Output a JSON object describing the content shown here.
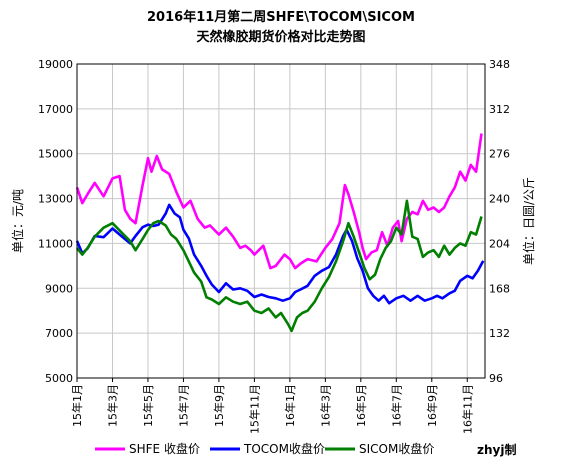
{
  "chart_data": {
    "type": "line",
    "title": "2016年11月第二周SHFE\\TOCOM\\SICOM",
    "subtitle": "天然橡胶期货价格对比走势图",
    "ylabel_left": "单位：元/吨",
    "ylabel_right": "单位：日圆/公斤",
    "left_axis": {
      "min": 5000,
      "max": 19000,
      "ticks": [
        "19000",
        "17000",
        "15000",
        "13000",
        "11000",
        "9000",
        "7000",
        "5000"
      ]
    },
    "right_axis": {
      "min": 96,
      "max": 348,
      "ticks": [
        "348",
        "312",
        "276",
        "240",
        "204",
        "168",
        "132",
        "96"
      ]
    },
    "x_ticks": [
      "15年1月",
      "15年3月",
      "15年5月",
      "15年7月",
      "15年9月",
      "15年11月",
      "16年1月",
      "16年3月",
      "16年5月",
      "16年7月",
      "16年9月",
      "16年11月"
    ],
    "x_tick_positions": [
      0,
      2,
      4,
      6,
      8,
      10,
      12,
      14,
      16,
      18,
      20,
      22
    ],
    "grid": true,
    "legend_position": "bottom",
    "credit": "zhyj制",
    "series": [
      {
        "name": "SHFE 收盘价",
        "axis": "left",
        "color": "#ff00ff",
        "points": [
          [
            0,
            13500
          ],
          [
            0.3,
            12800
          ],
          [
            0.6,
            13200
          ],
          [
            1,
            13700
          ],
          [
            1.5,
            13100
          ],
          [
            2,
            13900
          ],
          [
            2.4,
            14000
          ],
          [
            2.7,
            12500
          ],
          [
            3,
            12100
          ],
          [
            3.3,
            11900
          ],
          [
            3.7,
            13600
          ],
          [
            4,
            14800
          ],
          [
            4.2,
            14200
          ],
          [
            4.5,
            14900
          ],
          [
            4.8,
            14300
          ],
          [
            5.2,
            14100
          ],
          [
            5.6,
            13300
          ],
          [
            6,
            12600
          ],
          [
            6.4,
            12900
          ],
          [
            6.8,
            12100
          ],
          [
            7.2,
            11700
          ],
          [
            7.5,
            11800
          ],
          [
            8,
            11400
          ],
          [
            8.4,
            11700
          ],
          [
            8.8,
            11300
          ],
          [
            9.2,
            10800
          ],
          [
            9.5,
            10900
          ],
          [
            9.8,
            10700
          ],
          [
            10,
            10500
          ],
          [
            10.5,
            10900
          ],
          [
            10.9,
            9900
          ],
          [
            11.2,
            10000
          ],
          [
            11.7,
            10500
          ],
          [
            12,
            10300
          ],
          [
            12.3,
            9900
          ],
          [
            12.6,
            10100
          ],
          [
            13,
            10300
          ],
          [
            13.5,
            10200
          ],
          [
            14,
            10800
          ],
          [
            14.4,
            11200
          ],
          [
            14.8,
            11900
          ],
          [
            15.1,
            13600
          ],
          [
            15.3,
            13200
          ],
          [
            15.6,
            12400
          ],
          [
            15.9,
            11500
          ],
          [
            16.1,
            10800
          ],
          [
            16.3,
            10300
          ],
          [
            16.6,
            10600
          ],
          [
            16.9,
            10700
          ],
          [
            17.2,
            11500
          ],
          [
            17.5,
            10900
          ],
          [
            17.8,
            11700
          ],
          [
            18.1,
            12000
          ],
          [
            18.3,
            11100
          ],
          [
            18.6,
            12100
          ],
          [
            18.9,
            12400
          ],
          [
            19.2,
            12300
          ],
          [
            19.5,
            12900
          ],
          [
            19.8,
            12500
          ],
          [
            20.1,
            12600
          ],
          [
            20.4,
            12400
          ],
          [
            20.7,
            12600
          ],
          [
            21,
            13100
          ],
          [
            21.3,
            13500
          ],
          [
            21.6,
            14200
          ],
          [
            21.9,
            13800
          ],
          [
            22.2,
            14500
          ],
          [
            22.5,
            14200
          ],
          [
            22.8,
            15900
          ]
        ]
      },
      {
        "name": "TOCOM收盘价",
        "axis": "right",
        "color": "#0000ff",
        "points": [
          [
            0,
            206
          ],
          [
            0.3,
            196
          ],
          [
            0.6,
            200
          ],
          [
            1,
            210
          ],
          [
            1.5,
            209
          ],
          [
            2,
            216
          ],
          [
            2.5,
            210
          ],
          [
            3,
            204
          ],
          [
            3.3,
            210
          ],
          [
            3.7,
            217
          ],
          [
            4,
            219
          ],
          [
            4.3,
            218
          ],
          [
            4.6,
            219
          ],
          [
            5,
            228
          ],
          [
            5.2,
            235
          ],
          [
            5.5,
            228
          ],
          [
            5.8,
            225
          ],
          [
            6,
            215
          ],
          [
            6.3,
            208
          ],
          [
            6.6,
            195
          ],
          [
            7,
            186
          ],
          [
            7.3,
            178
          ],
          [
            7.6,
            171
          ],
          [
            8,
            165
          ],
          [
            8.4,
            172
          ],
          [
            8.8,
            167
          ],
          [
            9.2,
            168
          ],
          [
            9.6,
            166
          ],
          [
            10,
            161
          ],
          [
            10.4,
            163
          ],
          [
            10.8,
            161
          ],
          [
            11.2,
            160
          ],
          [
            11.6,
            158
          ],
          [
            12,
            160
          ],
          [
            12.3,
            165
          ],
          [
            12.6,
            167
          ],
          [
            13,
            170
          ],
          [
            13.4,
            178
          ],
          [
            13.8,
            182
          ],
          [
            14.2,
            185
          ],
          [
            14.6,
            195
          ],
          [
            15,
            210
          ],
          [
            15.2,
            215
          ],
          [
            15.5,
            206
          ],
          [
            15.8,
            192
          ],
          [
            16.1,
            182
          ],
          [
            16.4,
            168
          ],
          [
            16.7,
            162
          ],
          [
            17,
            158
          ],
          [
            17.3,
            162
          ],
          [
            17.6,
            156
          ],
          [
            18,
            160
          ],
          [
            18.4,
            162
          ],
          [
            18.8,
            158
          ],
          [
            19.2,
            162
          ],
          [
            19.6,
            158
          ],
          [
            20,
            160
          ],
          [
            20.3,
            162
          ],
          [
            20.6,
            160
          ],
          [
            21,
            164
          ],
          [
            21.3,
            166
          ],
          [
            21.6,
            174
          ],
          [
            22,
            178
          ],
          [
            22.3,
            176
          ],
          [
            22.6,
            182
          ],
          [
            22.9,
            190
          ]
        ]
      },
      {
        "name": "SICOM收盘价",
        "axis": "left",
        "color": "#007f00",
        "points": [
          [
            0,
            10800
          ],
          [
            0.3,
            10500
          ],
          [
            0.6,
            10800
          ],
          [
            1,
            11300
          ],
          [
            1.5,
            11700
          ],
          [
            2,
            11900
          ],
          [
            2.5,
            11500
          ],
          [
            3,
            11100
          ],
          [
            3.3,
            10700
          ],
          [
            3.7,
            11200
          ],
          [
            4,
            11600
          ],
          [
            4.3,
            11900
          ],
          [
            4.6,
            12000
          ],
          [
            5,
            11800
          ],
          [
            5.3,
            11400
          ],
          [
            5.6,
            11200
          ],
          [
            6,
            10700
          ],
          [
            6.3,
            10200
          ],
          [
            6.6,
            9700
          ],
          [
            7,
            9300
          ],
          [
            7.3,
            8600
          ],
          [
            7.6,
            8500
          ],
          [
            8,
            8300
          ],
          [
            8.4,
            8600
          ],
          [
            8.8,
            8400
          ],
          [
            9.2,
            8300
          ],
          [
            9.6,
            8400
          ],
          [
            10,
            8000
          ],
          [
            10.4,
            7900
          ],
          [
            10.8,
            8100
          ],
          [
            11.2,
            7700
          ],
          [
            11.5,
            7900
          ],
          [
            11.9,
            7400
          ],
          [
            12.1,
            7100
          ],
          [
            12.4,
            7700
          ],
          [
            12.7,
            7900
          ],
          [
            13,
            8000
          ],
          [
            13.4,
            8400
          ],
          [
            13.8,
            9000
          ],
          [
            14.2,
            9500
          ],
          [
            14.6,
            10200
          ],
          [
            15,
            11100
          ],
          [
            15.3,
            11900
          ],
          [
            15.6,
            11300
          ],
          [
            15.9,
            10600
          ],
          [
            16.2,
            9900
          ],
          [
            16.5,
            9400
          ],
          [
            16.8,
            9600
          ],
          [
            17.1,
            10300
          ],
          [
            17.4,
            10800
          ],
          [
            17.7,
            11100
          ],
          [
            18,
            11700
          ],
          [
            18.3,
            11400
          ],
          [
            18.6,
            12900
          ],
          [
            18.9,
            11300
          ],
          [
            19.2,
            11200
          ],
          [
            19.5,
            10400
          ],
          [
            19.8,
            10600
          ],
          [
            20.1,
            10700
          ],
          [
            20.4,
            10400
          ],
          [
            20.7,
            10900
          ],
          [
            21,
            10500
          ],
          [
            21.3,
            10800
          ],
          [
            21.6,
            11000
          ],
          [
            21.9,
            10900
          ],
          [
            22.2,
            11500
          ],
          [
            22.5,
            11400
          ],
          [
            22.8,
            12200
          ]
        ]
      }
    ]
  }
}
